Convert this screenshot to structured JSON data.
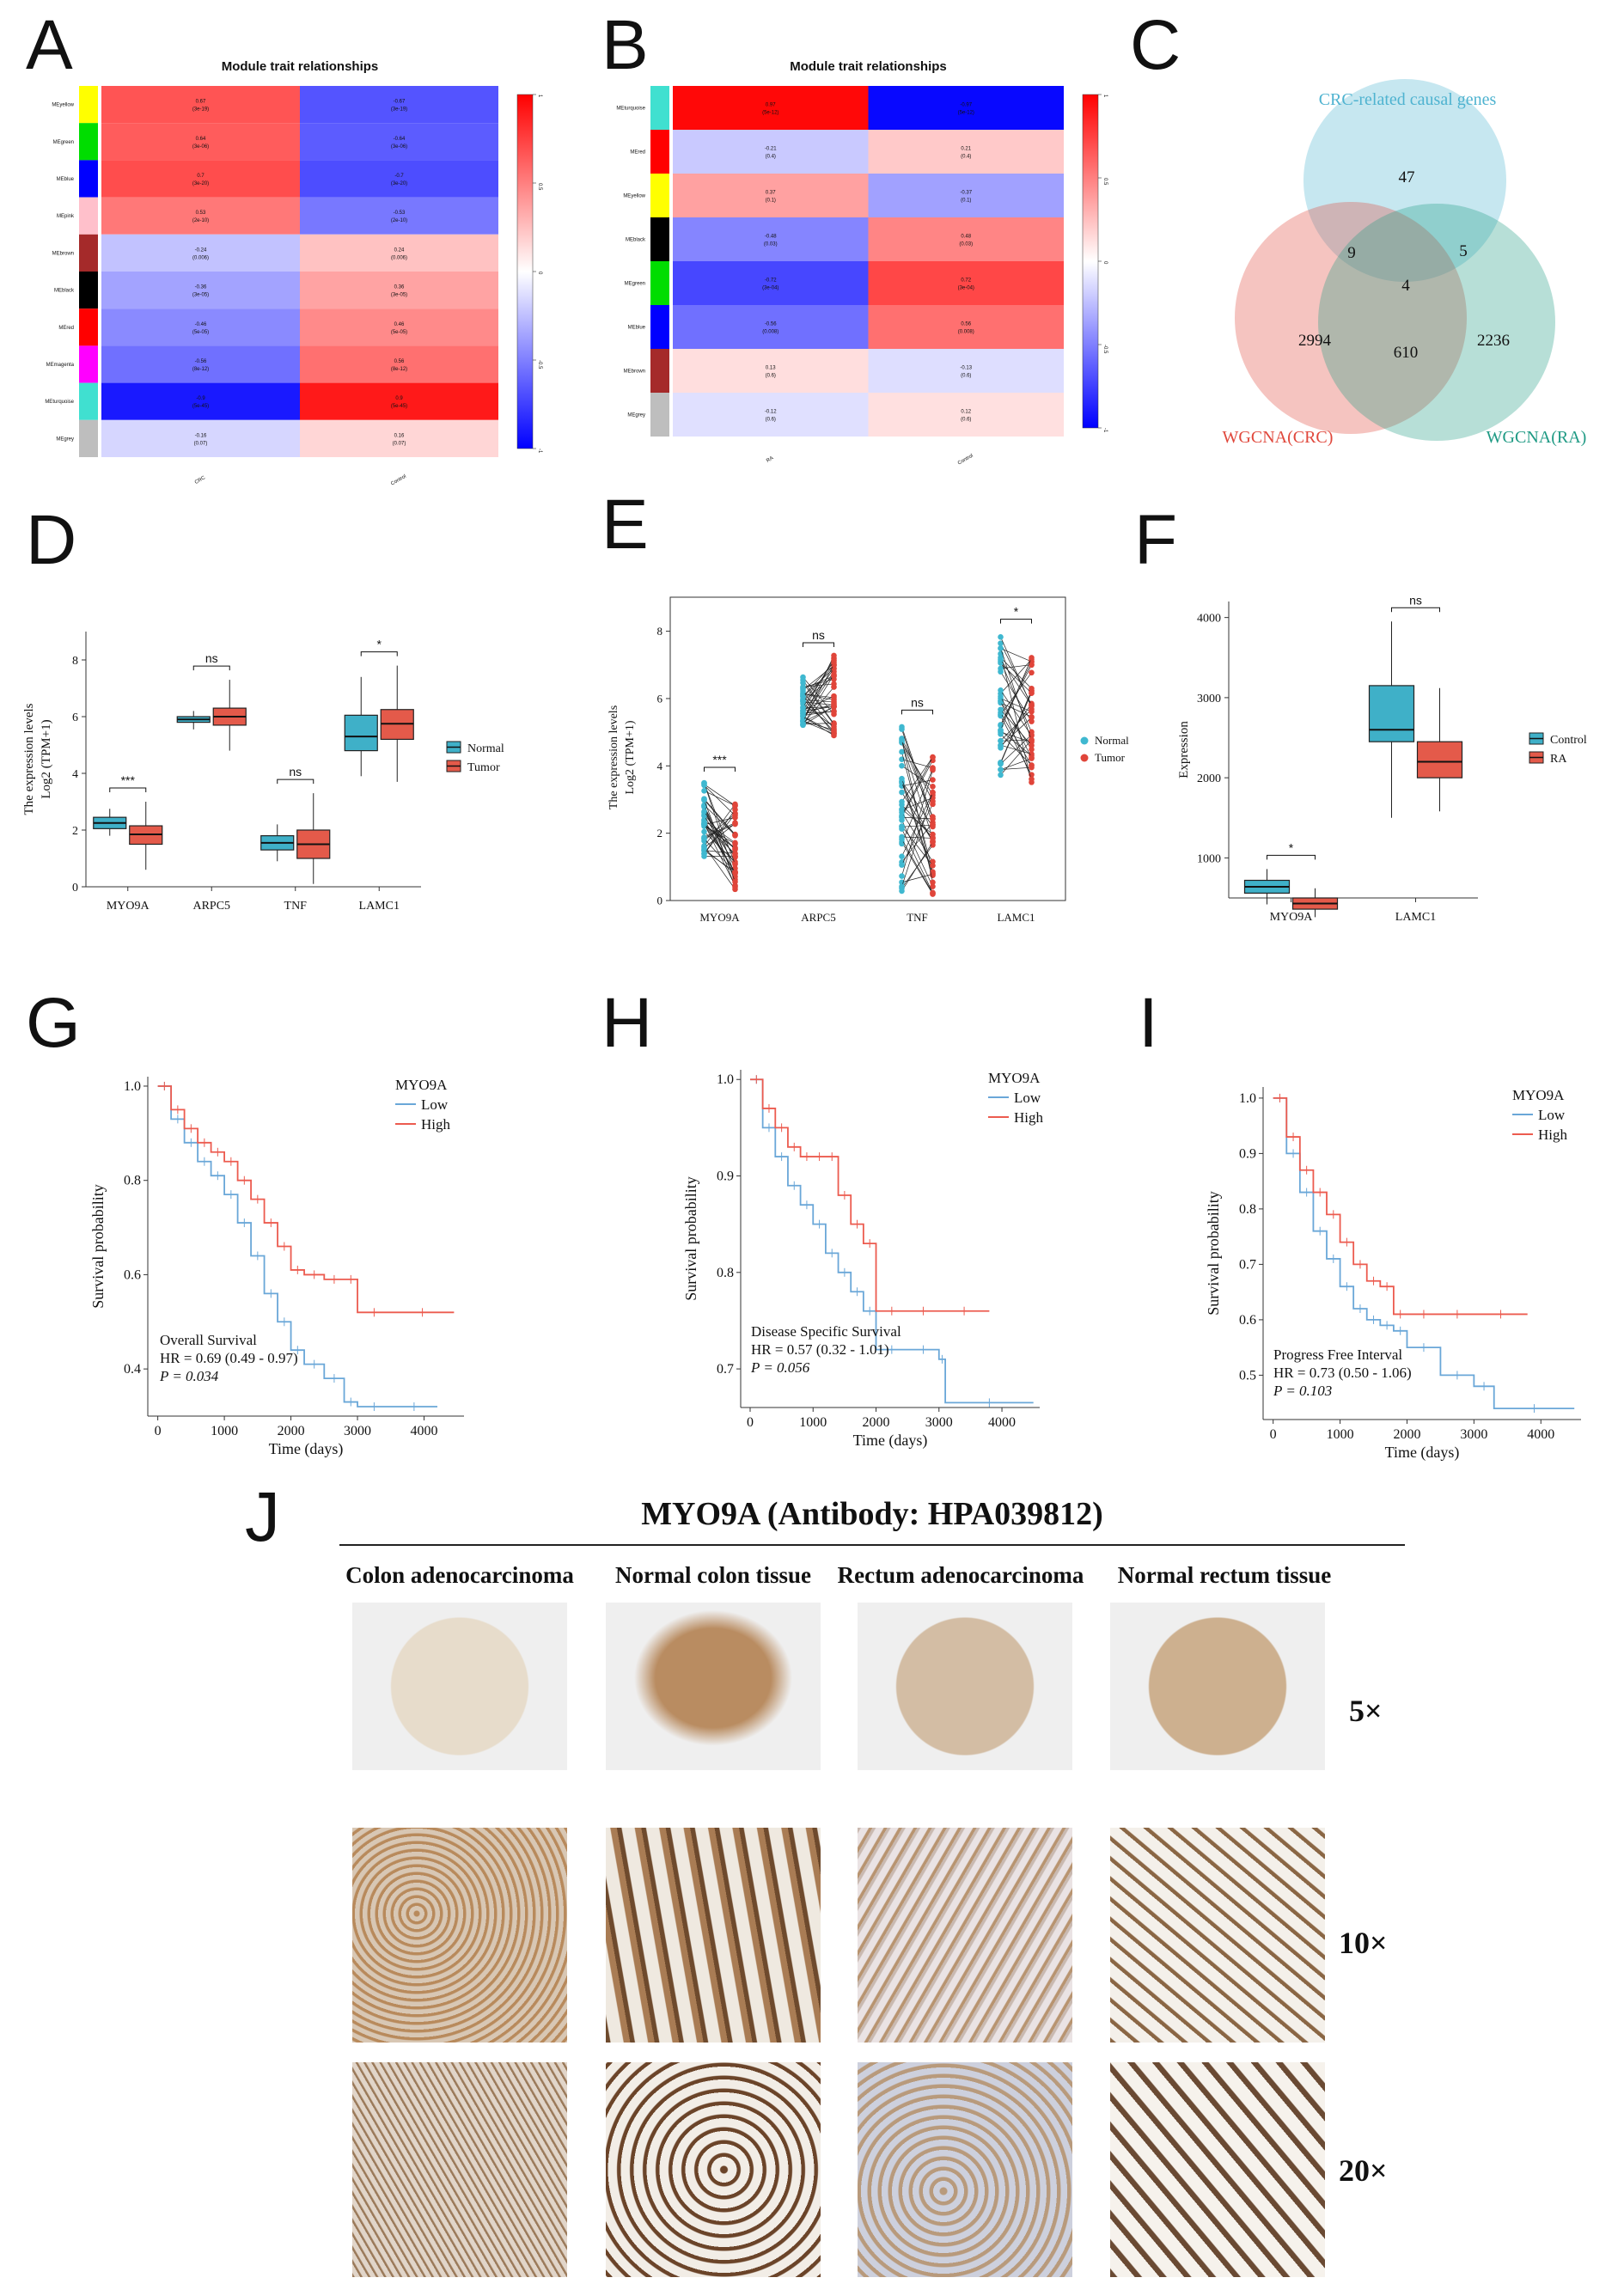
{
  "panels": {
    "A": "A",
    "B": "B",
    "C": "C",
    "D": "D",
    "E": "E",
    "F": "F",
    "G": "G",
    "H": "H",
    "I": "I",
    "J": "J"
  },
  "chart_data": [
    {
      "panel": "A",
      "type": "heatmap",
      "title": "Module trait relationships",
      "columns": [
        "CRC",
        "Control"
      ],
      "rows": [
        {
          "module": "MEyellow",
          "color": "#ffff00",
          "values": [
            0.67,
            -0.67
          ],
          "p": [
            "3e-19",
            "3e-19"
          ]
        },
        {
          "module": "MEgreen",
          "color": "#00dd00",
          "values": [
            0.64,
            -0.64
          ],
          "p": [
            "3e-06",
            "3e-06"
          ]
        },
        {
          "module": "MEblue",
          "color": "#0000ff",
          "values": [
            0.7,
            -0.7
          ],
          "p": [
            "3e-20",
            "3e-20"
          ]
        },
        {
          "module": "MEpink",
          "color": "#ffc0cb",
          "values": [
            0.53,
            -0.53
          ],
          "p": [
            "2e-10",
            "2e-10"
          ]
        },
        {
          "module": "MEbrown",
          "color": "#a52a2a",
          "values": [
            -0.24,
            0.24
          ],
          "p": [
            "0.006",
            "0.006"
          ]
        },
        {
          "module": "MEblack",
          "color": "#000000",
          "values": [
            -0.36,
            0.36
          ],
          "p": [
            "3e-05",
            "3e-05"
          ]
        },
        {
          "module": "MEred",
          "color": "#ff0000",
          "values": [
            -0.46,
            0.46
          ],
          "p": [
            "5e-05",
            "5e-05"
          ]
        },
        {
          "module": "MEmagenta",
          "color": "#ff00ff",
          "values": [
            -0.56,
            0.56
          ],
          "p": [
            "8e-12",
            "8e-12"
          ]
        },
        {
          "module": "MEturquoise",
          "color": "#40e0d0",
          "values": [
            -0.9,
            0.9
          ],
          "p": [
            "5e-45",
            "5e-45"
          ]
        },
        {
          "module": "MEgrey",
          "color": "#bebebe",
          "values": [
            -0.16,
            0.16
          ],
          "p": [
            "0.07",
            "0.07"
          ]
        }
      ],
      "scale": [
        -1,
        1
      ],
      "scale_ticks": [
        "1",
        "0.5",
        "0",
        "-0.5",
        "-1"
      ]
    },
    {
      "panel": "B",
      "type": "heatmap",
      "title": "Module trait relationships",
      "columns": [
        "RA",
        "Control"
      ],
      "rows": [
        {
          "module": "MEturquoise",
          "color": "#40e0d0",
          "values": [
            0.97,
            -0.97
          ],
          "p": [
            "5e-12",
            "5e-12"
          ]
        },
        {
          "module": "MEred",
          "color": "#ff0000",
          "values": [
            -0.21,
            0.21
          ],
          "p": [
            "0.4",
            "0.4"
          ]
        },
        {
          "module": "MEyellow",
          "color": "#ffff00",
          "values": [
            0.37,
            -0.37
          ],
          "p": [
            "0.1",
            "0.1"
          ]
        },
        {
          "module": "MEblack",
          "color": "#000000",
          "values": [
            -0.48,
            0.48
          ],
          "p": [
            "0.03",
            "0.03"
          ]
        },
        {
          "module": "MEgreen",
          "color": "#00dd00",
          "values": [
            -0.72,
            0.72
          ],
          "p": [
            "3e-04",
            "3e-04"
          ]
        },
        {
          "module": "MEblue",
          "color": "#0000ff",
          "values": [
            -0.56,
            0.56
          ],
          "p": [
            "0.008",
            "0.008"
          ]
        },
        {
          "module": "MEbrown",
          "color": "#a52a2a",
          "values": [
            0.13,
            -0.13
          ],
          "p": [
            "0.6",
            "0.6"
          ]
        },
        {
          "module": "MEgrey",
          "color": "#bebebe",
          "values": [
            -0.12,
            0.12
          ],
          "p": [
            "0.6",
            "0.6"
          ]
        }
      ],
      "scale": [
        -1,
        1
      ],
      "scale_ticks": [
        "1",
        "0.5",
        "0",
        "-0.5",
        "-1"
      ]
    },
    {
      "panel": "C",
      "type": "venn",
      "sets": [
        {
          "name": "CRC-related causal genes",
          "color": "#4fb3d0"
        },
        {
          "name": "WGCNA(CRC)",
          "color": "#e0483c"
        },
        {
          "name": "WGCNA(RA)",
          "color": "#1f9a84"
        }
      ],
      "counts": {
        "causal_only": "47",
        "causal_crc": "9",
        "causal_ra": "5",
        "all": "4",
        "crc_only": "2994",
        "crc_ra": "610",
        "ra_only": "2236"
      }
    },
    {
      "panel": "D",
      "type": "boxplot",
      "ylabel_line1": "The expression levels",
      "ylabel_line2": "Log2 (TPM+1)",
      "categories": [
        "MYO9A",
        "ARPC5",
        "TNF",
        "LAMC1"
      ],
      "ylim": [
        0,
        9
      ],
      "yticks": [
        "0",
        "2",
        "4",
        "6",
        "8"
      ],
      "legend": [
        "Normal",
        "Tumor"
      ],
      "colors": [
        "#3fb0c8",
        "#e45a4a"
      ],
      "series": [
        {
          "name": "Normal",
          "boxes": [
            [
              1.8,
              2.05,
              2.25,
              2.45,
              2.75
            ],
            [
              5.55,
              5.8,
              5.9,
              6.0,
              6.2
            ],
            [
              0.9,
              1.3,
              1.55,
              1.8,
              2.2
            ],
            [
              3.9,
              4.8,
              5.3,
              6.05,
              7.4
            ]
          ]
        },
        {
          "name": "Tumor",
          "boxes": [
            [
              0.6,
              1.5,
              1.85,
              2.15,
              3.0
            ],
            [
              4.8,
              5.7,
              6.0,
              6.3,
              7.3
            ],
            [
              0.1,
              1.0,
              1.5,
              2.0,
              3.3
            ],
            [
              3.7,
              5.2,
              5.75,
              6.25,
              7.8
            ]
          ]
        }
      ],
      "significance": [
        "***",
        "ns",
        "ns",
        "*"
      ]
    },
    {
      "panel": "E",
      "type": "paired-scatter",
      "ylabel_line1": "The expression levels",
      "ylabel_line2": "Log2 (TPM+1)",
      "categories": [
        "MYO9A",
        "ARPC5",
        "TNF",
        "LAMC1"
      ],
      "ylim": [
        0,
        8.5
      ],
      "yticks": [
        "0",
        "2",
        "4",
        "6",
        "8"
      ],
      "legend": [
        "Normal",
        "Tumor"
      ],
      "colors": [
        "#3fb8d0",
        "#e0453a"
      ],
      "ranges": [
        [
          1.2,
          3.6,
          0.2,
          2.9
        ],
        [
          5.2,
          6.8,
          4.9,
          7.3
        ],
        [
          0.1,
          5.3,
          0.1,
          4.3
        ],
        [
          3.5,
          8.0,
          3.4,
          7.3
        ]
      ],
      "significance": [
        "***",
        "ns",
        "ns",
        "*"
      ]
    },
    {
      "panel": "F",
      "type": "boxplot",
      "ylabel": "Expression",
      "categories": [
        "MYO9A",
        "LAMC1"
      ],
      "ylim": [
        500,
        4200
      ],
      "yticks": [
        "1000",
        "2000",
        "3000",
        "4000"
      ],
      "legend": [
        "Control",
        "RA"
      ],
      "colors": [
        "#3fb0c8",
        "#e45a4a"
      ],
      "series": [
        {
          "name": "Control",
          "boxes": [
            [
              420,
              560,
              640,
              720,
              860
            ],
            [
              1500,
              2450,
              2600,
              3150,
              3950
            ]
          ]
        },
        {
          "name": "RA",
          "boxes": [
            [
              260,
              360,
              430,
              500,
              620
            ],
            [
              1580,
              2000,
              2200,
              2450,
              3120
            ]
          ]
        }
      ],
      "significance": [
        "*",
        "ns"
      ]
    },
    {
      "panel": "G",
      "type": "line",
      "legend_title": "MYO9A",
      "legend": [
        "Low",
        "High"
      ],
      "colors": [
        "#6aa7d8",
        "#ec5b4f"
      ],
      "xlabel": "Time (days)",
      "ylabel": "Survival probability",
      "xticks": [
        "0",
        "1000",
        "2000",
        "3000",
        "4000"
      ],
      "yticks": [
        "0.4",
        "0.6",
        "0.8",
        "1.0"
      ],
      "xlim": [
        -150,
        4600
      ],
      "ylim": [
        0.3,
        1.02
      ],
      "annotation": [
        "Overall Survival",
        "HR = 0.69 (0.49 - 0.97)",
        "P = 0.034"
      ],
      "series": [
        {
          "name": "Low",
          "x": [
            0,
            200,
            400,
            600,
            800,
            1000,
            1200,
            1400,
            1600,
            1800,
            2000,
            2200,
            2500,
            2800,
            3000,
            3500,
            4200
          ],
          "y": [
            1.0,
            0.93,
            0.88,
            0.84,
            0.81,
            0.77,
            0.71,
            0.64,
            0.56,
            0.5,
            0.44,
            0.41,
            0.38,
            0.33,
            0.32,
            0.32,
            0.32
          ]
        },
        {
          "name": "High",
          "x": [
            0,
            200,
            400,
            600,
            800,
            1000,
            1200,
            1400,
            1600,
            1800,
            2000,
            2200,
            2500,
            2800,
            3000,
            3500,
            4450
          ],
          "y": [
            1.0,
            0.95,
            0.91,
            0.88,
            0.86,
            0.84,
            0.8,
            0.76,
            0.71,
            0.66,
            0.61,
            0.6,
            0.59,
            0.59,
            0.52,
            0.52,
            0.52
          ]
        }
      ]
    },
    {
      "panel": "H",
      "type": "line",
      "legend_title": "MYO9A",
      "legend": [
        "Low",
        "High"
      ],
      "colors": [
        "#6aa7d8",
        "#ec5b4f"
      ],
      "xlabel": "Time (days)",
      "ylabel": "Survival probability",
      "xticks": [
        "0",
        "1000",
        "2000",
        "3000",
        "4000"
      ],
      "yticks": [
        "0.7",
        "0.8",
        "0.9",
        "1.0"
      ],
      "xlim": [
        -150,
        4600
      ],
      "ylim": [
        0.66,
        1.01
      ],
      "annotation": [
        "Disease Specific Survival",
        "HR = 0.57 (0.32 - 1.01)",
        "P = 0.056"
      ],
      "series": [
        {
          "name": "Low",
          "x": [
            0,
            200,
            400,
            600,
            800,
            1000,
            1200,
            1400,
            1600,
            1800,
            2000,
            2500,
            3000,
            3100,
            4500
          ],
          "y": [
            1.0,
            0.95,
            0.92,
            0.89,
            0.87,
            0.85,
            0.82,
            0.8,
            0.78,
            0.76,
            0.72,
            0.72,
            0.71,
            0.665,
            0.665
          ]
        },
        {
          "name": "High",
          "x": [
            0,
            200,
            400,
            600,
            800,
            1000,
            1200,
            1400,
            1600,
            1800,
            2000,
            2500,
            3000,
            3800
          ],
          "y": [
            1.0,
            0.97,
            0.95,
            0.93,
            0.92,
            0.92,
            0.92,
            0.88,
            0.85,
            0.83,
            0.76,
            0.76,
            0.76,
            0.76
          ]
        }
      ]
    },
    {
      "panel": "I",
      "type": "line",
      "legend_title": "MYO9A",
      "legend": [
        "Low",
        "High"
      ],
      "colors": [
        "#6aa7d8",
        "#ec5b4f"
      ],
      "xlabel": "Time (days)",
      "ylabel": "Survival probability",
      "xticks": [
        "0",
        "1000",
        "2000",
        "3000",
        "4000"
      ],
      "yticks": [
        "0.5",
        "0.6",
        "0.7",
        "0.8",
        "0.9",
        "1.0"
      ],
      "xlim": [
        -150,
        4600
      ],
      "ylim": [
        0.42,
        1.02
      ],
      "annotation": [
        "Progress Free Interval",
        "HR = 0.73 (0.50 - 1.06)",
        "P = 0.103"
      ],
      "series": [
        {
          "name": "Low",
          "x": [
            0,
            200,
            400,
            600,
            800,
            1000,
            1200,
            1400,
            1600,
            1800,
            2000,
            2500,
            3000,
            3300,
            4500
          ],
          "y": [
            1.0,
            0.9,
            0.83,
            0.76,
            0.71,
            0.66,
            0.62,
            0.6,
            0.59,
            0.58,
            0.55,
            0.5,
            0.48,
            0.44,
            0.44
          ]
        },
        {
          "name": "High",
          "x": [
            0,
            200,
            400,
            600,
            800,
            1000,
            1200,
            1400,
            1600,
            1800,
            2000,
            2500,
            3000,
            3800
          ],
          "y": [
            1.0,
            0.93,
            0.87,
            0.83,
            0.79,
            0.74,
            0.7,
            0.67,
            0.66,
            0.61,
            0.61,
            0.61,
            0.61,
            0.61
          ]
        }
      ]
    }
  ],
  "ihc": {
    "title": "MYO9A (Antibody: HPA039812)",
    "columns": [
      "Colon adenocarcinoma",
      "Normal colon tissue",
      "Rectum adenocarcinoma",
      "Normal rectum tissue"
    ],
    "magnifications": [
      "5×",
      "10×",
      "20×"
    ]
  }
}
